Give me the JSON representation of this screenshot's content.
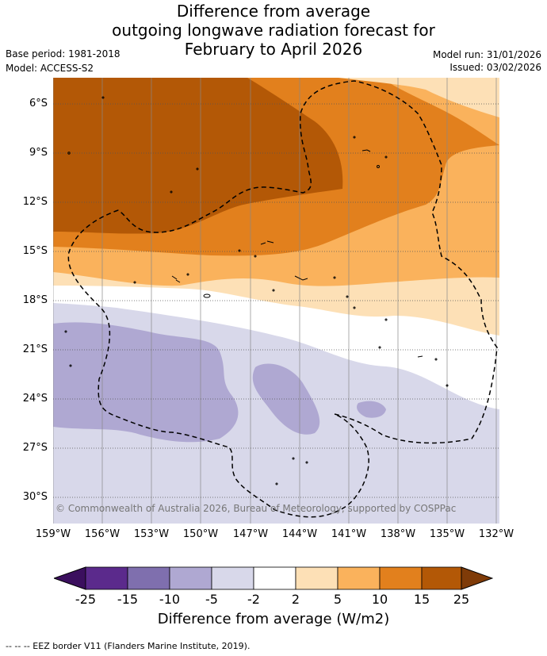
{
  "title": {
    "line1": "Difference from average",
    "line2": "outgoing longwave radiation forecast for",
    "line3": "February to April 2026"
  },
  "meta": {
    "base_period": "Base period: 1981-2018",
    "model": "Model: ACCESS-S2",
    "model_run": "Model run: 31/01/2026",
    "issued": "Issued: 03/02/2026"
  },
  "latitudes": [
    "6°S",
    "9°S",
    "12°S",
    "15°S",
    "18°S",
    "21°S",
    "24°S",
    "27°S",
    "30°S"
  ],
  "longitudes": [
    "159°W",
    "156°W",
    "153°W",
    "150°W",
    "147°W",
    "144°W",
    "141°W",
    "138°W",
    "135°W",
    "132°W"
  ],
  "copyright": "© Commonwealth of Australia 2026, Bureau of Meteorology, supported by COSPPac",
  "colorbar": {
    "labels": [
      "-25",
      "-15",
      "-10",
      "-5",
      "-2",
      "2",
      "5",
      "10",
      "15",
      "25"
    ],
    "colors": [
      "#3b0f5e",
      "#5b2a8c",
      "#7f6fae",
      "#afa8d2",
      "#d8d8ea",
      "#ffffff",
      "#fde0b6",
      "#fab25c",
      "#e2801d",
      "#b35806",
      "#7f3b08"
    ],
    "title": "Difference from average (W/m2)"
  },
  "legend": {
    "eez": "--  --  -- EEZ border V11 (Flanders Marine Institute, 2019)."
  }
}
